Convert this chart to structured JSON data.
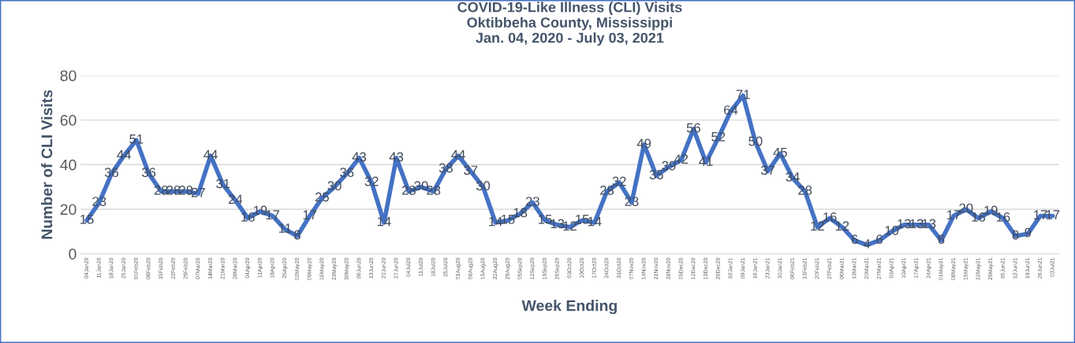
{
  "chart_data": {
    "type": "line",
    "title": "COVID-19-Like Illness (CLI) Visits\nOktibbeha County, Mississippi\nJan. 04, 2020 - July 03, 2021",
    "xlabel": "Week Ending",
    "ylabel": "Number of CLI Visits",
    "categories": [
      "04Jan20",
      "11Jan20",
      "18Jan20",
      "25Jan20",
      "01Feb20",
      "08Feb20",
      "15Feb20",
      "22Feb20",
      "29Feb20",
      "07Mar20",
      "14Mar20",
      "21Mar20",
      "28Mar20",
      "04Apr20",
      "11Apr20",
      "18Apr20",
      "25Apr20",
      "02May20",
      "09May20",
      "16May20",
      "23May20",
      "30May20",
      "06Jun20",
      "13Jun20",
      "20Jun20",
      "27Jun20",
      "04Jul20",
      "11Jul20",
      "18Jul20",
      "25Jul20",
      "01Aug20",
      "08Aug20",
      "15Aug20",
      "22Aug20",
      "29Aug20",
      "05Sep20",
      "12Sep20",
      "19Sep20",
      "26Sep20",
      "03Oct20",
      "10Oct20",
      "17Oct20",
      "24Oct20",
      "31Oct20",
      "07Nov20",
      "14Nov20",
      "21Nov20",
      "28Nov20",
      "05Dec20",
      "12Dec20",
      "19Dec20",
      "26Dec20",
      "02Jan21",
      "09Jan21",
      "16Jan21",
      "23Jan21",
      "30Jan21",
      "06Feb21",
      "13Feb21",
      "20Feb21",
      "27Feb21",
      "06Mar21",
      "13Mar21",
      "20Mar21",
      "27Mar21",
      "03Apr21",
      "10Apr21",
      "17Apr21",
      "24Apr21",
      "01May21",
      "08May21",
      "15May21",
      "22May21",
      "29May21",
      "05Jun21",
      "12Jun21",
      "19Jun21",
      "26Jun21",
      "03Jul21"
    ],
    "series": [
      {
        "color": "#4472c4",
        "values": [
          15,
          23,
          36,
          44,
          51,
          36,
          28,
          28,
          28,
          27,
          44,
          31,
          24,
          16,
          19,
          17,
          11,
          8,
          17,
          25,
          30,
          36,
          43,
          32,
          14,
          43,
          28,
          30,
          28,
          38,
          44,
          37,
          30,
          14,
          15,
          18,
          23,
          15,
          13,
          12,
          15,
          14,
          28,
          32,
          23,
          49,
          35,
          39,
          42,
          56,
          41,
          52,
          64,
          71,
          50,
          37,
          45,
          34,
          28,
          12,
          16,
          12,
          6,
          4,
          6,
          10,
          13,
          13,
          13,
          6,
          17,
          20,
          16,
          19,
          16,
          8,
          9,
          17,
          17
        ]
      }
    ],
    "ylim": [
      0,
      80
    ],
    "yticks": [
      0,
      20,
      40,
      60,
      80
    ],
    "grid": "y",
    "data_labels": true,
    "marker": "none",
    "line_style": "solid"
  }
}
